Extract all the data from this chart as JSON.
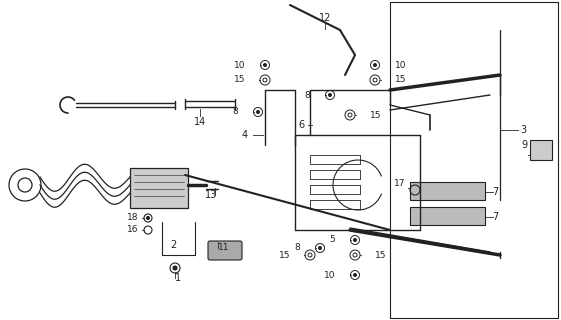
{
  "bg_color": "#ffffff",
  "line_color": "#222222",
  "fig_w": 5.61,
  "fig_h": 3.2,
  "dpi": 100
}
